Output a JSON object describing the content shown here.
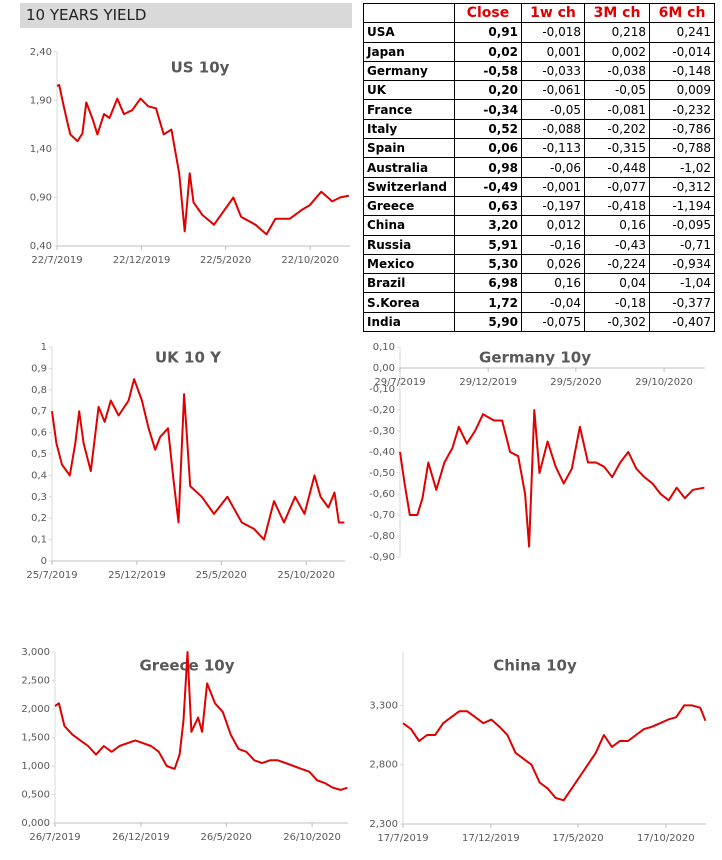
{
  "header": {
    "title": "10 YEARS YIELD"
  },
  "table": {
    "columns": [
      "Close",
      "1w ch",
      "3M ch",
      "6M ch"
    ],
    "rows": [
      [
        "USA",
        "0,91",
        "-0,018",
        "0,218",
        "0,241"
      ],
      [
        "Japan",
        "0,02",
        "0,001",
        "0,002",
        "-0,014"
      ],
      [
        "Germany",
        "-0,58",
        "-0,033",
        "-0,038",
        "-0,148"
      ],
      [
        "UK",
        "0,20",
        "-0,061",
        "-0,05",
        "0,009"
      ],
      [
        "France",
        "-0,34",
        "-0,05",
        "-0,081",
        "-0,232"
      ],
      [
        "Italy",
        "0,52",
        "-0,088",
        "-0,202",
        "-0,786"
      ],
      [
        "Spain",
        "0,06",
        "-0,113",
        "-0,315",
        "-0,788"
      ],
      [
        "Australia",
        "0,98",
        "-0,06",
        "-0,448",
        "-1,02"
      ],
      [
        "Switzerland",
        "-0,49",
        "-0,001",
        "-0,077",
        "-0,312"
      ],
      [
        "Greece",
        "0,63",
        "-0,197",
        "-0,418",
        "-1,194"
      ],
      [
        "China",
        "3,20",
        "0,012",
        "0,16",
        "-0,095"
      ],
      [
        "Russia",
        "5,91",
        "-0,16",
        "-0,43",
        "-0,71"
      ],
      [
        "Mexico",
        "5,30",
        "0,026",
        "-0,224",
        "-0,934"
      ],
      [
        "Brazil",
        "6,98",
        "0,16",
        "0,04",
        "-1,04"
      ],
      [
        "S.Korea",
        "1,72",
        "-0,04",
        "-0,18",
        "-0,377"
      ],
      [
        "India",
        "5,90",
        "-0,075",
        "-0,302",
        "-0,407"
      ]
    ]
  },
  "chart_data": [
    {
      "type": "line",
      "title": "US 10y",
      "color": "#e00000",
      "grid": false,
      "x": [
        "22/7/2019",
        "26/7/2019",
        "1/8/2019",
        "8/8/2019",
        "15/8/2019",
        "28/8/2019",
        "6/9/2019",
        "13/9/2019",
        "25/9/2019",
        "3/10/2019",
        "15/10/2019",
        "25/10/2019",
        "8/11/2019",
        "20/11/2019",
        "5/12/2019",
        "20/12/2019",
        "3/1/2020",
        "17/1/2020",
        "31/1/2020",
        "14/2/2020",
        "28/2/2020",
        "9/3/2020",
        "18/3/2020",
        "25/3/2020",
        "10/4/2020",
        "1/5/2020",
        "5/6/2020",
        "19/6/2020",
        "15/7/2020",
        "4/8/2020",
        "20/8/2020",
        "15/9/2020",
        "9/10/2020",
        "21/10/2020",
        "11/11/2020",
        "1/12/2020",
        "15/12/2020",
        "31/12/2020"
      ],
      "values": [
        2.05,
        2.06,
        1.9,
        1.72,
        1.55,
        1.48,
        1.56,
        1.88,
        1.7,
        1.55,
        1.76,
        1.72,
        1.92,
        1.76,
        1.8,
        1.92,
        1.84,
        1.82,
        1.55,
        1.6,
        1.15,
        0.55,
        1.15,
        0.85,
        0.72,
        0.62,
        0.9,
        0.7,
        0.62,
        0.52,
        0.68,
        0.68,
        0.78,
        0.82,
        0.96,
        0.86,
        0.9,
        0.92
      ],
      "xlim": [
        "22/7/2019",
        "2/1/2021"
      ],
      "xticks": [
        "22/7/2019",
        "22/12/2019",
        "22/5/2020",
        "22/10/2020"
      ],
      "ylim": [
        0.4,
        2.4
      ],
      "yticks": [
        {
          "value": 0.4,
          "label": "0,40"
        },
        {
          "value": 0.9,
          "label": "0,90"
        },
        {
          "value": 1.4,
          "label": "1,40"
        },
        {
          "value": 1.9,
          "label": "1,90"
        },
        {
          "value": 2.4,
          "label": "2,40"
        }
      ]
    },
    {
      "type": "line",
      "title": "UK 10 Y",
      "color": "#e00000",
      "grid": false,
      "x": [
        "25/7/2019",
        "2/8/2019",
        "12/8/2019",
        "26/8/2019",
        "5/9/2019",
        "12/9/2019",
        "20/9/2019",
        "3/10/2019",
        "17/10/2019",
        "28/10/2019",
        "8/11/2019",
        "22/11/2019",
        "10/12/2019",
        "20/12/2019",
        "3/1/2020",
        "15/1/2020",
        "27/1/2020",
        "5/2/2020",
        "19/2/2020",
        "28/2/2020",
        "9/3/2020",
        "19/3/2020",
        "30/3/2020",
        "20/4/2020",
        "12/5/2020",
        "5/6/2020",
        "1/7/2020",
        "23/7/2020",
        "10/8/2020",
        "28/8/2020",
        "15/9/2020",
        "5/10/2020",
        "22/10/2020",
        "9/11/2020",
        "20/11/2020",
        "4/12/2020",
        "15/12/2020",
        "23/12/2020",
        "2/1/2021"
      ],
      "values": [
        0.7,
        0.55,
        0.45,
        0.4,
        0.55,
        0.7,
        0.55,
        0.42,
        0.72,
        0.65,
        0.75,
        0.68,
        0.75,
        0.85,
        0.75,
        0.62,
        0.52,
        0.58,
        0.62,
        0.4,
        0.18,
        0.78,
        0.35,
        0.3,
        0.22,
        0.3,
        0.18,
        0.15,
        0.1,
        0.28,
        0.18,
        0.3,
        0.22,
        0.4,
        0.3,
        0.25,
        0.32,
        0.18,
        0.18
      ],
      "xlim": [
        "25/7/2019",
        "3/1/2021"
      ],
      "xticks": [
        "25/7/2019",
        "25/12/2019",
        "25/5/2020",
        "25/10/2020"
      ],
      "ylim": [
        0,
        1
      ],
      "yticks": [
        0,
        {
          "value": 0.1,
          "label": "0,1"
        },
        {
          "value": 0.2,
          "label": "0,2"
        },
        {
          "value": 0.3,
          "label": "0,3"
        },
        {
          "value": 0.4,
          "label": "0,4"
        },
        {
          "value": 0.5,
          "label": "0,5"
        },
        {
          "value": 0.6,
          "label": "0,6"
        },
        {
          "value": 0.7,
          "label": "0,7"
        },
        {
          "value": 0.8,
          "label": "0,8"
        },
        {
          "value": 0.9,
          "label": "0,9"
        },
        1
      ]
    },
    {
      "type": "line",
      "title": "Germany 10y",
      "color": "#e00000",
      "grid": false,
      "x": [
        "29/7/2019",
        "6/8/2019",
        "15/8/2019",
        "28/8/2019",
        "6/9/2019",
        "16/9/2019",
        "30/9/2019",
        "14/10/2019",
        "28/10/2019",
        "8/11/2019",
        "22/11/2019",
        "6/12/2019",
        "20/12/2019",
        "8/1/2020",
        "22/1/2020",
        "5/2/2020",
        "19/2/2020",
        "2/3/2020",
        "9/3/2020",
        "18/3/2020",
        "27/3/2020",
        "10/4/2020",
        "24/4/2020",
        "8/5/2020",
        "22/5/2020",
        "5/6/2020",
        "19/6/2020",
        "3/7/2020",
        "17/7/2020",
        "31/7/2020",
        "14/8/2020",
        "28/8/2020",
        "11/9/2020",
        "25/9/2020",
        "9/10/2020",
        "23/10/2020",
        "6/11/2020",
        "20/11/2020",
        "4/12/2020",
        "18/12/2020",
        "7/1/2021"
      ],
      "values": [
        -0.4,
        -0.55,
        -0.7,
        -0.7,
        -0.62,
        -0.45,
        -0.58,
        -0.45,
        -0.38,
        -0.28,
        -0.36,
        -0.3,
        -0.22,
        -0.25,
        -0.25,
        -0.4,
        -0.42,
        -0.6,
        -0.85,
        -0.2,
        -0.5,
        -0.35,
        -0.47,
        -0.55,
        -0.48,
        -0.28,
        -0.45,
        -0.45,
        -0.47,
        -0.52,
        -0.45,
        -0.4,
        -0.48,
        -0.52,
        -0.55,
        -0.6,
        -0.63,
        -0.57,
        -0.62,
        -0.58,
        -0.57
      ],
      "xlim": [
        "29/7/2019",
        "8/1/2021"
      ],
      "xticks": [
        "29/7/2019",
        "29/12/2019",
        "29/5/2020",
        "29/10/2020"
      ],
      "ylim": [
        -0.9,
        0.1
      ],
      "yticks": [
        {
          "value": -0.9,
          "label": "-0,90"
        },
        {
          "value": -0.8,
          "label": "-0,80"
        },
        {
          "value": -0.7,
          "label": "-0,70"
        },
        {
          "value": -0.6,
          "label": "-0,60"
        },
        {
          "value": -0.5,
          "label": "-0,50"
        },
        {
          "value": -0.4,
          "label": "-0,40"
        },
        {
          "value": -0.3,
          "label": "-0,30"
        },
        {
          "value": -0.2,
          "label": "-0,20"
        },
        {
          "value": -0.1,
          "label": "-0,10"
        },
        {
          "value": 0,
          "label": "0,00"
        },
        {
          "value": 0.1,
          "label": "0,10"
        }
      ]
    },
    {
      "type": "line",
      "title": "Greece 10y",
      "color": "#e00000",
      "grid": false,
      "x": [
        "26/7/2019",
        "2/8/2019",
        "12/8/2019",
        "26/8/2019",
        "9/9/2019",
        "23/9/2019",
        "7/10/2019",
        "21/10/2019",
        "4/11/2019",
        "18/11/2019",
        "2/12/2019",
        "16/12/2019",
        "30/12/2019",
        "13/1/2020",
        "27/1/2020",
        "10/2/2020",
        "24/2/2020",
        "4/3/2020",
        "11/3/2020",
        "18/3/2020",
        "25/3/2020",
        "6/4/2020",
        "13/4/2020",
        "22/4/2020",
        "6/5/2020",
        "20/5/2020",
        "3/6/2020",
        "17/6/2020",
        "1/7/2020",
        "15/7/2020",
        "29/7/2020",
        "12/8/2020",
        "26/8/2020",
        "9/9/2020",
        "23/9/2020",
        "7/10/2020",
        "21/10/2020",
        "4/11/2020",
        "18/11/2020",
        "2/12/2020",
        "16/12/2020",
        "28/12/2020"
      ],
      "values": [
        2.05,
        2.1,
        1.7,
        1.55,
        1.45,
        1.35,
        1.2,
        1.35,
        1.25,
        1.35,
        1.4,
        1.45,
        1.4,
        1.35,
        1.25,
        1.0,
        0.95,
        1.2,
        1.8,
        3.0,
        1.6,
        1.85,
        1.6,
        2.45,
        2.1,
        1.95,
        1.55,
        1.3,
        1.25,
        1.1,
        1.05,
        1.1,
        1.1,
        1.05,
        1.0,
        0.95,
        0.9,
        0.75,
        0.7,
        0.62,
        0.58,
        0.62
      ],
      "xlim": [
        "26/7/2019",
        "29/12/2020"
      ],
      "xticks": [
        "26/7/2019",
        "26/12/2019",
        "26/5/2020",
        "26/10/2020"
      ],
      "ylim": [
        0,
        3
      ],
      "yticks": [
        {
          "value": 0,
          "label": "0,000"
        },
        {
          "value": 0.5,
          "label": "0,500"
        },
        {
          "value": 1,
          "label": "1,000"
        },
        {
          "value": 1.5,
          "label": "1,500"
        },
        {
          "value": 2,
          "label": "2,000"
        },
        {
          "value": 2.5,
          "label": "2,500"
        },
        {
          "value": 3,
          "label": "3,000"
        }
      ]
    },
    {
      "type": "line",
      "title": "China 10y",
      "color": "#e00000",
      "grid": false,
      "x": [
        "17/7/2019",
        "31/7/2019",
        "14/8/2019",
        "28/8/2019",
        "11/9/2019",
        "25/9/2019",
        "9/10/2019",
        "23/10/2019",
        "6/11/2019",
        "20/11/2019",
        "4/12/2019",
        "18/12/2019",
        "1/1/2020",
        "15/1/2020",
        "29/1/2020",
        "12/2/2020",
        "26/2/2020",
        "11/3/2020",
        "25/3/2020",
        "8/4/2020",
        "22/4/2020",
        "6/5/2020",
        "20/5/2020",
        "3/6/2020",
        "17/6/2020",
        "1/7/2020",
        "15/7/2020",
        "29/7/2020",
        "12/8/2020",
        "26/8/2020",
        "9/9/2020",
        "23/9/2020",
        "7/10/2020",
        "21/10/2020",
        "4/11/2020",
        "18/11/2020",
        "2/12/2020",
        "16/12/2020",
        "25/12/2020"
      ],
      "values": [
        3.15,
        3.1,
        3.0,
        3.05,
        3.05,
        3.15,
        3.2,
        3.25,
        3.25,
        3.2,
        3.15,
        3.18,
        3.12,
        3.05,
        2.9,
        2.85,
        2.8,
        2.65,
        2.6,
        2.52,
        2.5,
        2.6,
        2.7,
        2.8,
        2.9,
        3.05,
        2.95,
        3.0,
        3.0,
        3.05,
        3.1,
        3.12,
        3.15,
        3.18,
        3.2,
        3.3,
        3.3,
        3.28,
        3.17
      ],
      "xlim": [
        "17/7/2019",
        "26/12/2020"
      ],
      "xticks": [
        "17/7/2019",
        "17/12/2019",
        "17/5/2020",
        "17/10/2020"
      ],
      "ylim": [
        2.3,
        3.75
      ],
      "yticks": [
        {
          "value": 2.3,
          "label": "2,300"
        },
        {
          "value": 2.8,
          "label": "2,800"
        },
        {
          "value": 3.3,
          "label": "3,300"
        }
      ]
    }
  ]
}
